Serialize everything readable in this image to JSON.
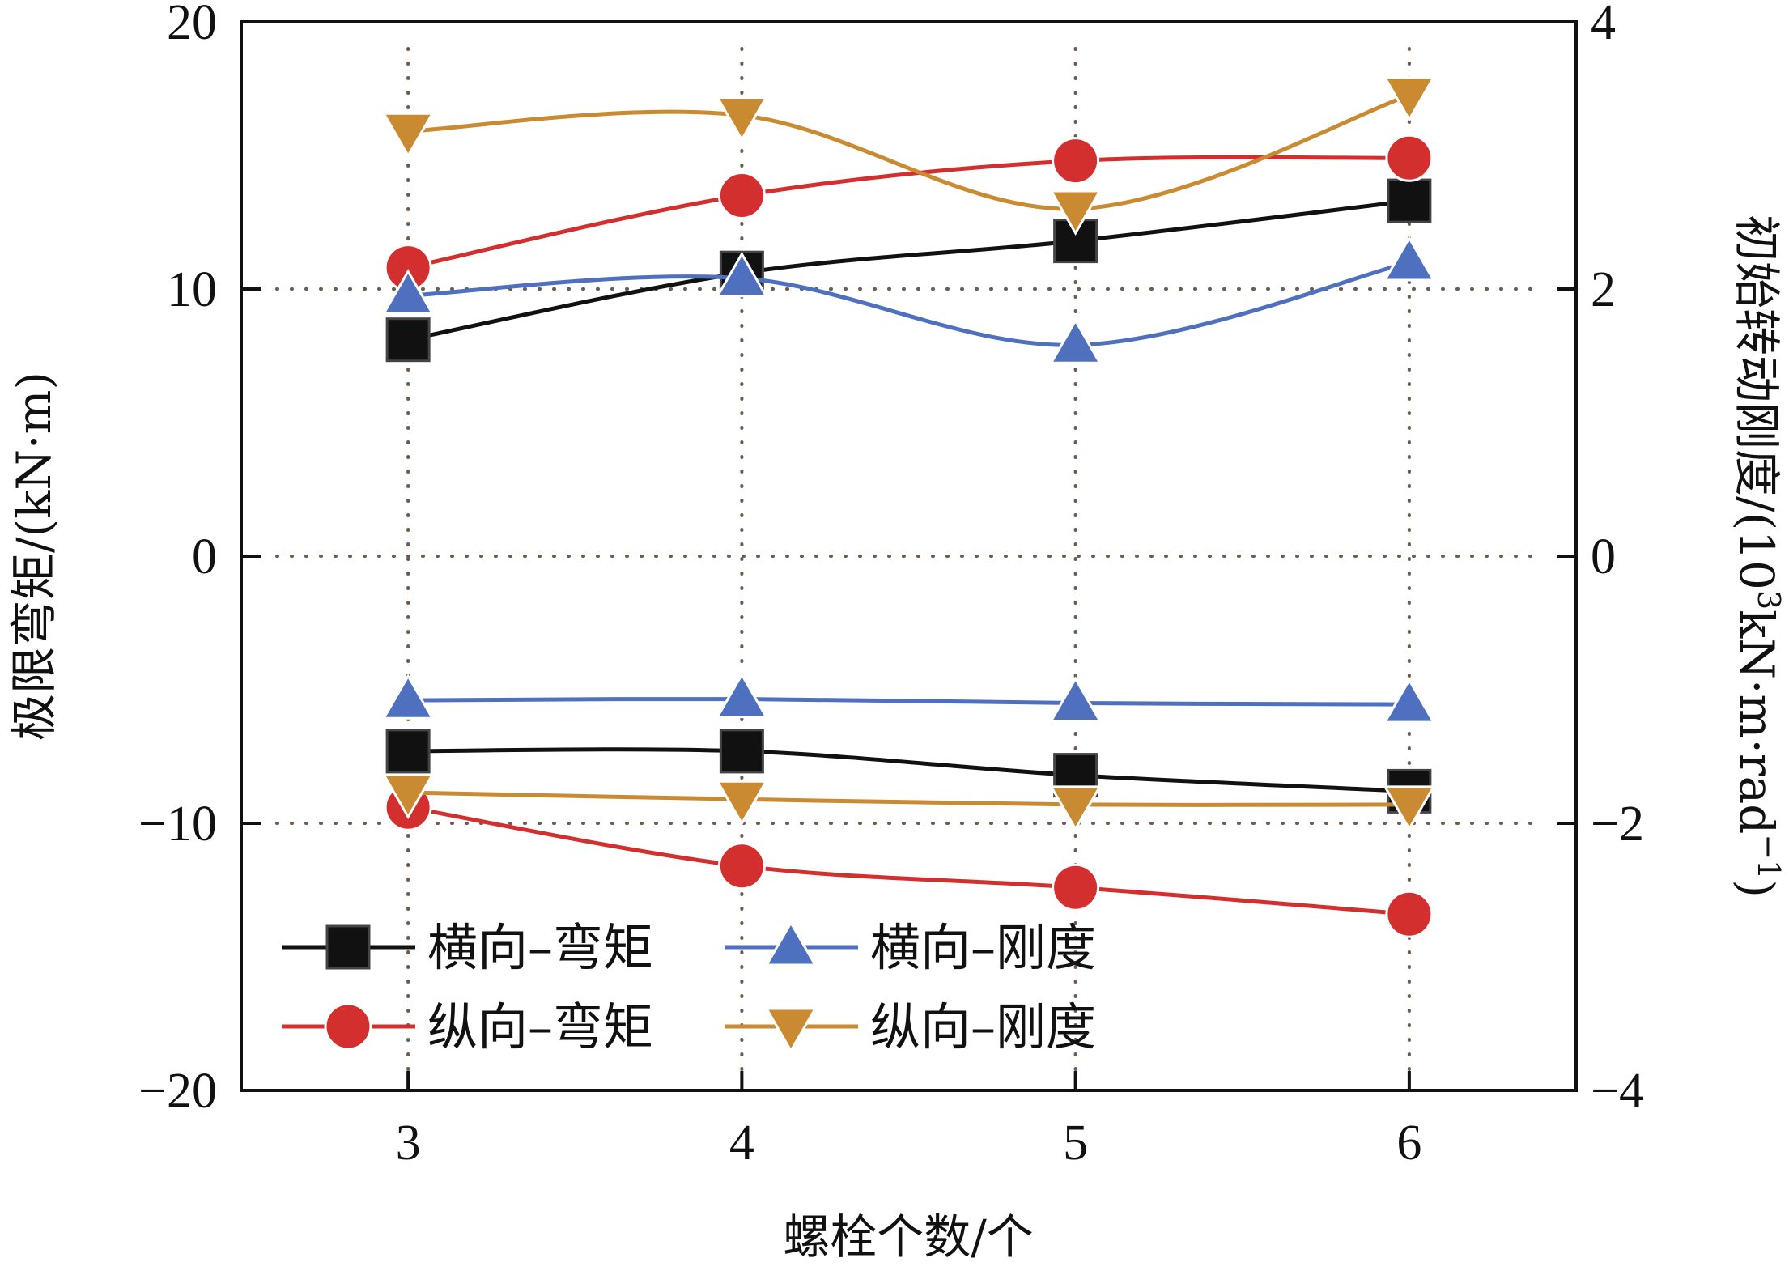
{
  "chart_data": {
    "type": "line",
    "x": [
      3,
      4,
      5,
      6
    ],
    "xlabel": "螺栓个数/个",
    "ylabel_left": "极限弯矩/(kN·m)",
    "ylabel_right_main": "初始转动刚度/(10",
    "ylabel_right_sup1": "3",
    "ylabel_right_mid": "kN·m·rad",
    "ylabel_right_sup2": "−1",
    "ylabel_right_end": ")",
    "xlim": [
      2.5,
      6.5
    ],
    "ylim_left": [
      -20,
      20
    ],
    "ylim_right": [
      -4,
      4
    ],
    "xticks": [
      "3",
      "4",
      "5",
      "6"
    ],
    "yticks_left": [
      "20",
      "10",
      "0",
      "−10",
      "−20"
    ],
    "yticks_right": [
      "4",
      "2",
      "0",
      "−2",
      "−4"
    ],
    "grid": "dotted",
    "legend_position": "bottom-left",
    "series": [
      {
        "name": "横向–弯矩",
        "axis": "left",
        "marker": "square",
        "color": "#111111",
        "positive": [
          8.1,
          10.6,
          11.8,
          13.3
        ],
        "negative": [
          -7.3,
          -7.3,
          -8.2,
          -8.8
        ]
      },
      {
        "name": "纵向–弯矩",
        "axis": "left",
        "marker": "circle",
        "color": "#d42f2f",
        "positive": [
          10.8,
          13.5,
          14.8,
          14.9
        ],
        "negative": [
          -9.4,
          -11.6,
          -12.4,
          -13.4
        ]
      },
      {
        "name": "横向–刚度",
        "axis": "right",
        "marker": "triangle-up",
        "color": "#4f6fbf",
        "positive": [
          1.95,
          2.08,
          1.58,
          2.2
        ],
        "negative": [
          -1.08,
          -1.07,
          -1.1,
          -1.11
        ]
      },
      {
        "name": "纵向–刚度",
        "axis": "right",
        "marker": "triangle-down",
        "color": "#c98a32",
        "positive": [
          3.18,
          3.3,
          2.6,
          3.45
        ],
        "negative": [
          -1.77,
          -1.82,
          -1.86,
          -1.86
        ]
      }
    ]
  }
}
